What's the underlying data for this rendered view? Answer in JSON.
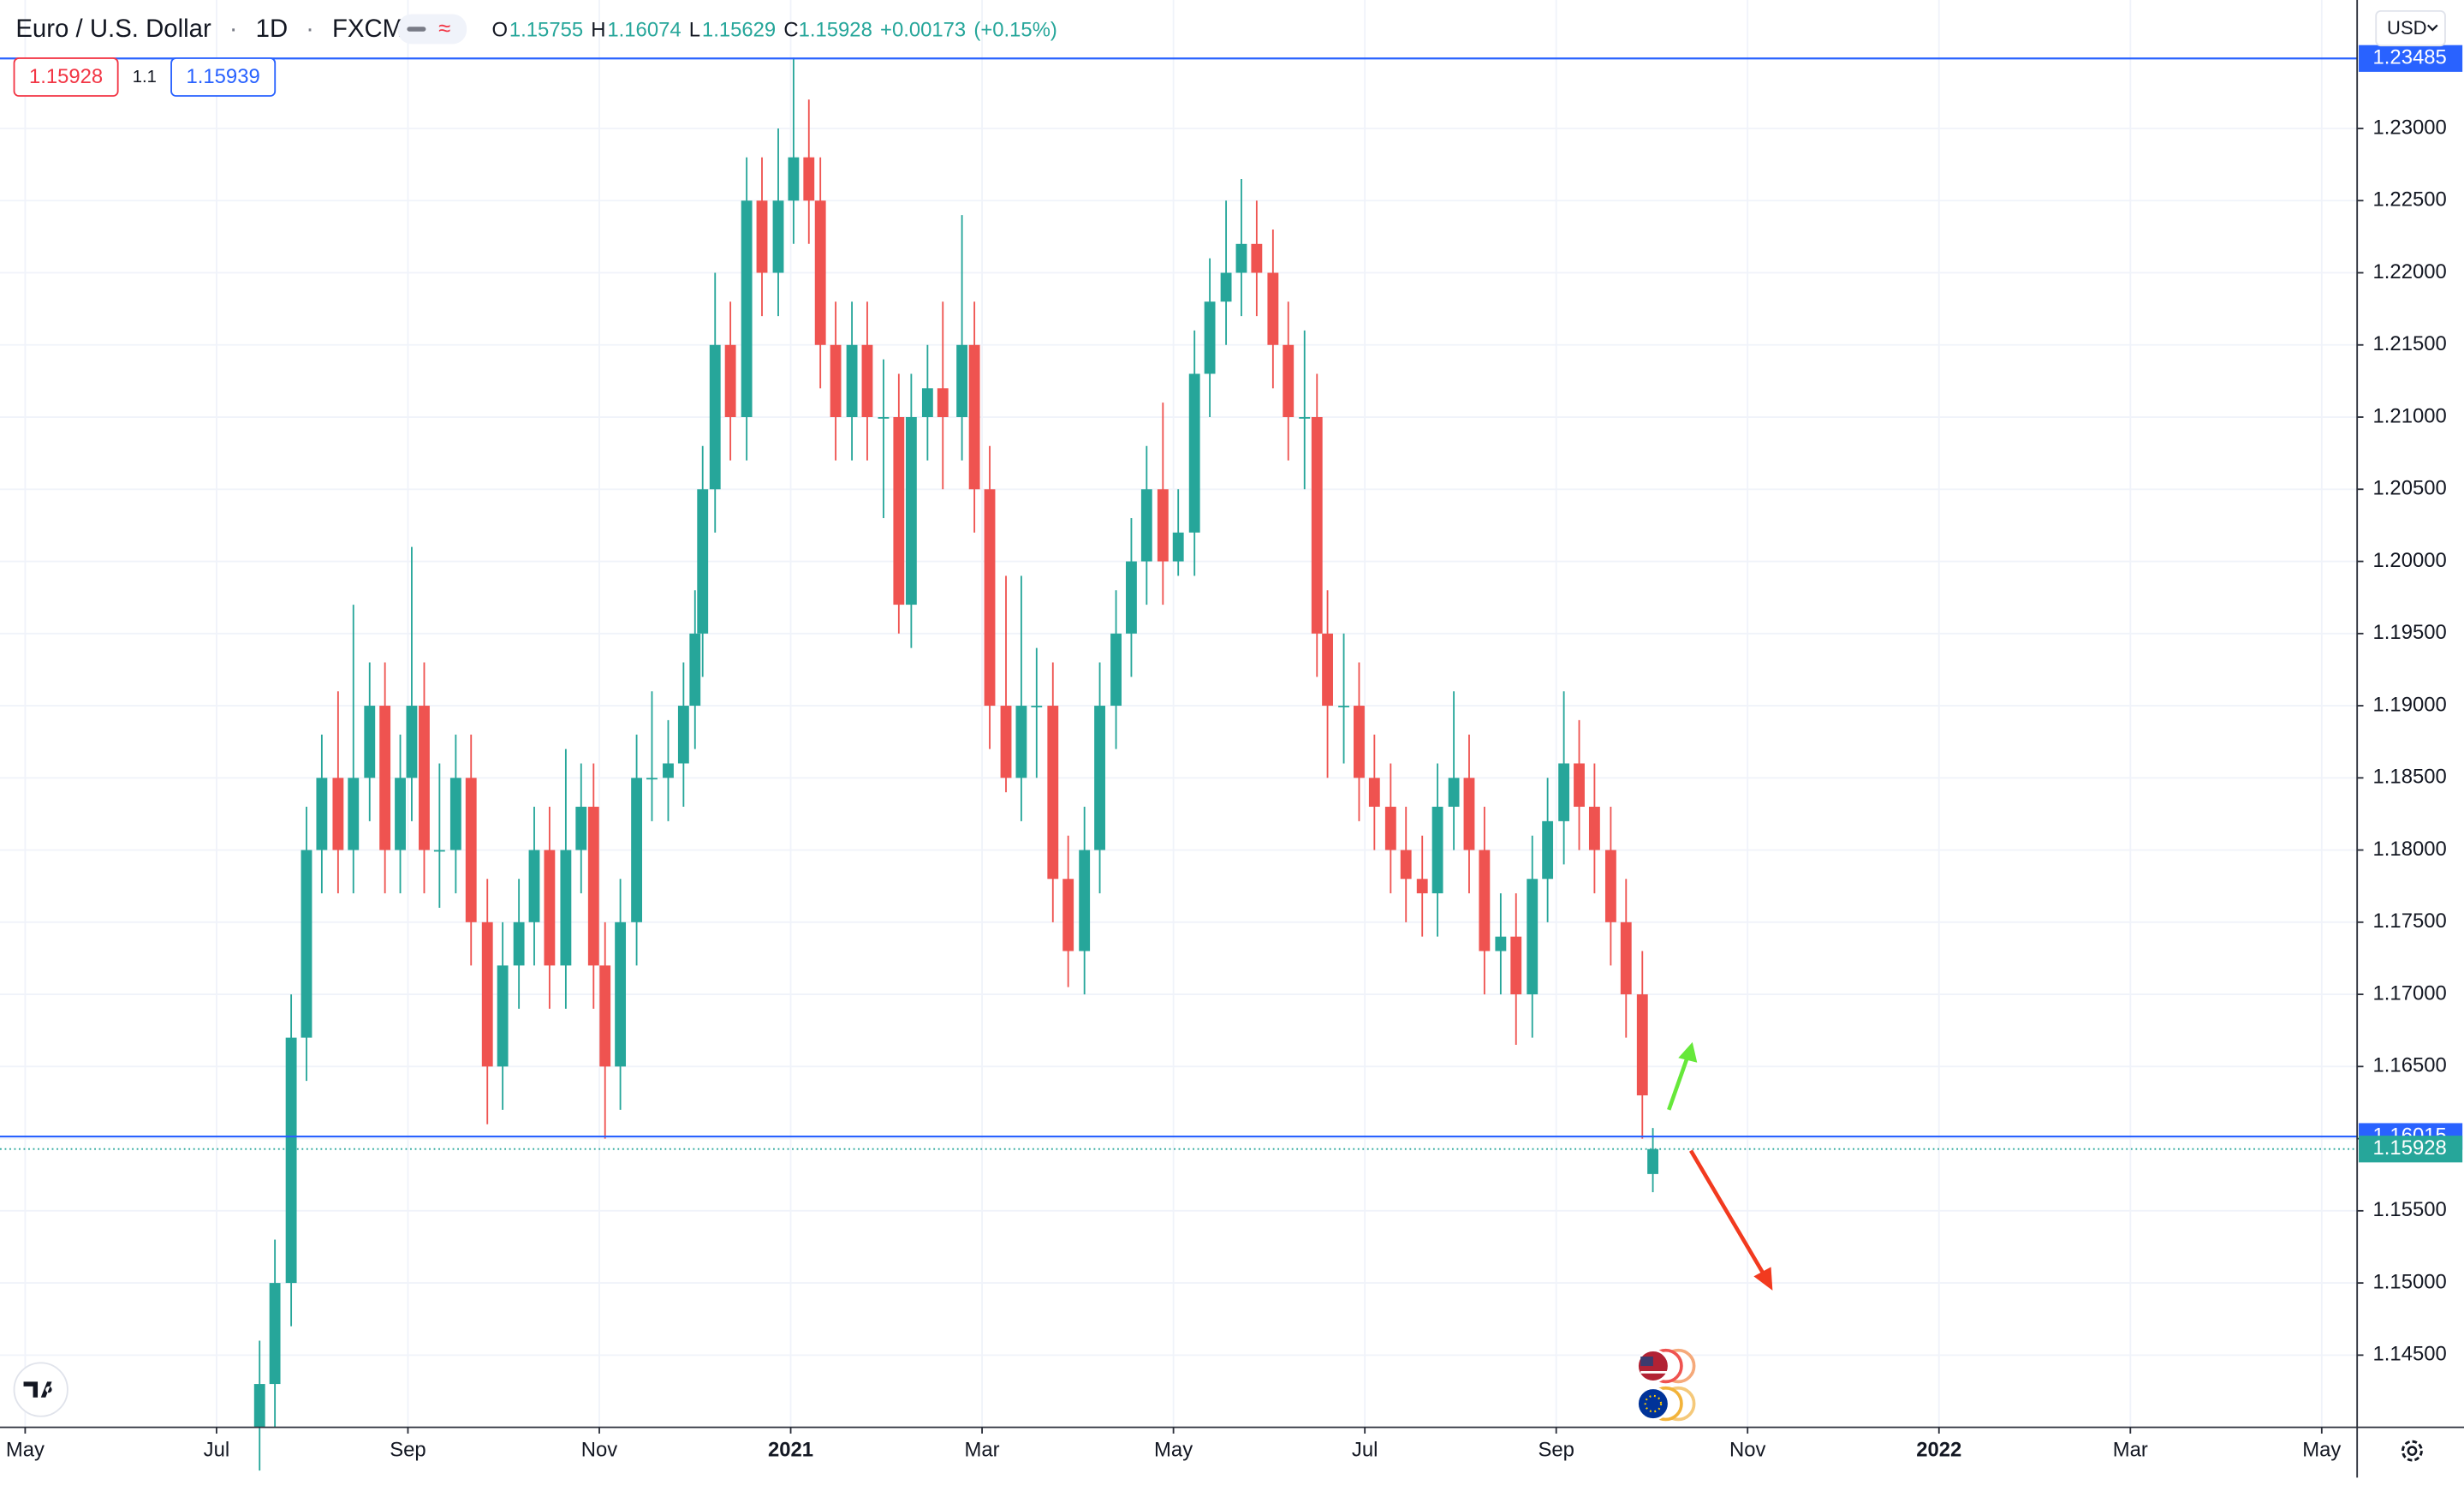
{
  "header": {
    "symbol": "Euro / U.S. Dollar",
    "interval": "1D",
    "exchange": "FXCM",
    "legend": [
      {
        "key": "O",
        "value": "1.15755"
      },
      {
        "key": "H",
        "value": "1.16074"
      },
      {
        "key": "L",
        "value": "1.15629"
      },
      {
        "key": "C",
        "value": "1.15928"
      }
    ],
    "change": "+0.00173",
    "change_pct": "(+0.15%)",
    "sell": "1.15928",
    "spread": "1.1",
    "buy": "1.15939",
    "currency": "USD"
  },
  "chart_data": {
    "type": "candlestick",
    "x": [
      2.45,
      2.61,
      2.78,
      2.94,
      3.1,
      3.27,
      3.43,
      3.6,
      3.76,
      3.92,
      4.04,
      4.17,
      4.33,
      4.5,
      4.66,
      4.83,
      4.99,
      5.16,
      5.32,
      5.48,
      5.65,
      5.81,
      5.94,
      6.06,
      6.22,
      6.39,
      6.55,
      6.72,
      6.88,
      7.0,
      7.08,
      7.21,
      7.37,
      7.54,
      7.7,
      7.87,
      8.03,
      8.19,
      8.31,
      8.47,
      8.64,
      8.8,
      8.97,
      9.13,
      9.26,
      9.43,
      9.59,
      9.79,
      9.92,
      10.08,
      10.25,
      10.41,
      10.57,
      10.74,
      10.9,
      11.07,
      11.23,
      11.4,
      11.56,
      11.72,
      11.89,
      12.05,
      12.22,
      12.38,
      12.55,
      12.71,
      12.87,
      13.04,
      13.2,
      13.37,
      13.5,
      13.61,
      13.78,
      13.94,
      14.1,
      14.27,
      14.43,
      14.6,
      14.76,
      14.93,
      15.09,
      15.25,
      15.42,
      15.58,
      15.75,
      15.91,
      16.08,
      16.24,
      16.4,
      16.57,
      16.73,
      16.9,
      17.01
    ],
    "open": [
      1.14,
      1.143,
      1.15,
      1.167,
      1.18,
      1.185,
      1.18,
      1.185,
      1.19,
      1.18,
      1.185,
      1.19,
      1.18,
      1.18,
      1.185,
      1.175,
      1.165,
      1.172,
      1.175,
      1.18,
      1.172,
      1.18,
      1.183,
      1.172,
      1.165,
      1.175,
      1.185,
      1.185,
      1.186,
      1.19,
      1.195,
      1.205,
      1.215,
      1.21,
      1.225,
      1.22,
      1.225,
      1.228,
      1.225,
      1.215,
      1.21,
      1.215,
      1.21,
      1.21,
      1.197,
      1.21,
      1.212,
      1.21,
      1.215,
      1.205,
      1.19,
      1.185,
      1.19,
      1.19,
      1.178,
      1.173,
      1.18,
      1.19,
      1.195,
      1.2,
      1.205,
      1.2,
      1.202,
      1.213,
      1.218,
      1.22,
      1.222,
      1.22,
      1.215,
      1.21,
      1.21,
      1.195,
      1.19,
      1.19,
      1.185,
      1.183,
      1.18,
      1.178,
      1.177,
      1.183,
      1.185,
      1.18,
      1.173,
      1.174,
      1.17,
      1.178,
      1.182,
      1.186,
      1.183,
      1.18,
      1.175,
      1.17,
      1.15755
    ],
    "high": [
      1.146,
      1.153,
      1.17,
      1.183,
      1.188,
      1.191,
      1.197,
      1.193,
      1.193,
      1.188,
      1.201,
      1.193,
      1.186,
      1.188,
      1.188,
      1.178,
      1.175,
      1.178,
      1.183,
      1.183,
      1.187,
      1.186,
      1.186,
      1.175,
      1.178,
      1.188,
      1.191,
      1.189,
      1.193,
      1.198,
      1.208,
      1.22,
      1.218,
      1.228,
      1.228,
      1.23,
      1.2349,
      1.232,
      1.228,
      1.218,
      1.218,
      1.218,
      1.214,
      1.213,
      1.213,
      1.215,
      1.218,
      1.224,
      1.218,
      1.208,
      1.199,
      1.199,
      1.194,
      1.193,
      1.181,
      1.183,
      1.193,
      1.198,
      1.203,
      1.208,
      1.211,
      1.205,
      1.216,
      1.221,
      1.225,
      1.2265,
      1.225,
      1.223,
      1.218,
      1.216,
      1.213,
      1.198,
      1.195,
      1.193,
      1.188,
      1.186,
      1.183,
      1.181,
      1.186,
      1.191,
      1.188,
      1.183,
      1.177,
      1.177,
      1.181,
      1.185,
      1.191,
      1.189,
      1.186,
      1.183,
      1.178,
      1.173,
      1.16074
    ],
    "low": [
      1.137,
      1.14,
      1.147,
      1.164,
      1.177,
      1.177,
      1.177,
      1.182,
      1.177,
      1.177,
      1.182,
      1.177,
      1.176,
      1.177,
      1.172,
      1.161,
      1.162,
      1.169,
      1.172,
      1.169,
      1.169,
      1.177,
      1.169,
      1.16,
      1.162,
      1.172,
      1.182,
      1.182,
      1.183,
      1.187,
      1.192,
      1.202,
      1.207,
      1.207,
      1.217,
      1.217,
      1.222,
      1.222,
      1.212,
      1.207,
      1.207,
      1.207,
      1.203,
      1.195,
      1.194,
      1.207,
      1.205,
      1.207,
      1.202,
      1.187,
      1.184,
      1.182,
      1.185,
      1.175,
      1.1705,
      1.17,
      1.177,
      1.187,
      1.192,
      1.197,
      1.197,
      1.199,
      1.199,
      1.21,
      1.215,
      1.217,
      1.217,
      1.212,
      1.207,
      1.205,
      1.192,
      1.185,
      1.186,
      1.182,
      1.18,
      1.177,
      1.175,
      1.174,
      1.174,
      1.18,
      1.177,
      1.17,
      1.17,
      1.1665,
      1.167,
      1.175,
      1.179,
      1.18,
      1.177,
      1.172,
      1.167,
      1.16,
      1.15629
    ],
    "close": [
      1.143,
      1.15,
      1.167,
      1.18,
      1.185,
      1.18,
      1.185,
      1.19,
      1.18,
      1.185,
      1.19,
      1.18,
      1.18,
      1.185,
      1.175,
      1.165,
      1.172,
      1.175,
      1.18,
      1.172,
      1.18,
      1.183,
      1.172,
      1.165,
      1.175,
      1.185,
      1.185,
      1.186,
      1.19,
      1.195,
      1.205,
      1.215,
      1.21,
      1.225,
      1.22,
      1.225,
      1.228,
      1.225,
      1.215,
      1.21,
      1.215,
      1.21,
      1.21,
      1.197,
      1.21,
      1.212,
      1.21,
      1.215,
      1.205,
      1.19,
      1.185,
      1.19,
      1.19,
      1.178,
      1.173,
      1.18,
      1.19,
      1.195,
      1.2,
      1.205,
      1.2,
      1.202,
      1.213,
      1.218,
      1.22,
      1.222,
      1.22,
      1.215,
      1.21,
      1.21,
      1.195,
      1.19,
      1.19,
      1.185,
      1.183,
      1.18,
      1.178,
      1.177,
      1.183,
      1.185,
      1.18,
      1.173,
      1.174,
      1.17,
      1.178,
      1.182,
      1.186,
      1.183,
      1.18,
      1.175,
      1.17,
      1.163,
      1.15928
    ],
    "up_color": "#26a69a",
    "down_color": "#ef5350",
    "xlim": [
      -0.263,
      24.37
    ],
    "ylim": [
      1.14,
      1.2389
    ],
    "grid": true,
    "xticks": [
      {
        "value": 0,
        "label": "May"
      },
      {
        "value": 2,
        "label": "Jul"
      },
      {
        "value": 4,
        "label": "Sep"
      },
      {
        "value": 6,
        "label": "Nov"
      },
      {
        "value": 8,
        "label": "2021"
      },
      {
        "value": 10,
        "label": "Mar"
      },
      {
        "value": 12,
        "label": "May"
      },
      {
        "value": 14,
        "label": "Jul"
      },
      {
        "value": 16,
        "label": "Sep"
      },
      {
        "value": 18,
        "label": "Nov"
      },
      {
        "value": 20,
        "label": "2022"
      },
      {
        "value": 22,
        "label": "Mar"
      },
      {
        "value": 24,
        "label": "May"
      }
    ],
    "yticks": [
      {
        "value": 1.145,
        "label": "1.14500"
      },
      {
        "value": 1.15,
        "label": "1.15000"
      },
      {
        "value": 1.155,
        "label": "1.15500"
      },
      {
        "value": 1.16,
        "label": "1.16000"
      },
      {
        "value": 1.165,
        "label": "1.16500"
      },
      {
        "value": 1.17,
        "label": "1.17000"
      },
      {
        "value": 1.175,
        "label": "1.17500"
      },
      {
        "value": 1.18,
        "label": "1.18000"
      },
      {
        "value": 1.185,
        "label": "1.18500"
      },
      {
        "value": 1.19,
        "label": "1.19000"
      },
      {
        "value": 1.195,
        "label": "1.19500"
      },
      {
        "value": 1.2,
        "label": "1.20000"
      },
      {
        "value": 1.205,
        "label": "1.20500"
      },
      {
        "value": 1.21,
        "label": "1.21000"
      },
      {
        "value": 1.215,
        "label": "1.21500"
      },
      {
        "value": 1.22,
        "label": "1.22000"
      },
      {
        "value": 1.225,
        "label": "1.22500"
      },
      {
        "value": 1.23,
        "label": "1.23000"
      }
    ],
    "hlines": [
      {
        "value": 1.23485,
        "label": "1.23485",
        "color": "#2962ff"
      },
      {
        "value": 1.16015,
        "label": "1.16015",
        "color": "#2962ff"
      }
    ],
    "last_price": {
      "value": 1.15928,
      "label": "1.15928",
      "color": "#26a69a"
    }
  }
}
